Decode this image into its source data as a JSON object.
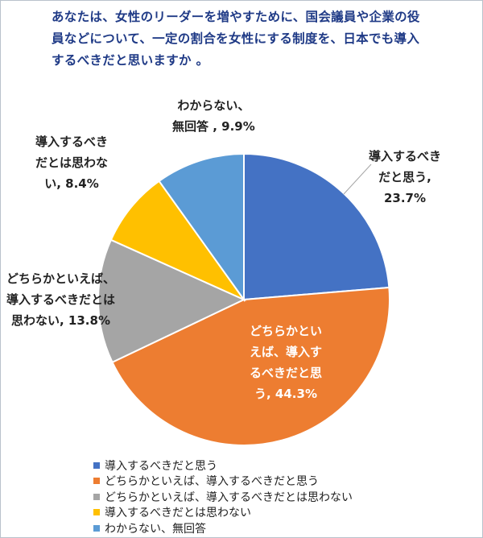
{
  "title_lines": [
    "あなたは、女性のリーダーを増やすために、国会議員や企業の役",
    "員などについて、一定の割合を女性にする制度を、日本でも導入",
    "するべきだと思いますか 。"
  ],
  "chart_data": {
    "type": "pie",
    "title": "あなたは、女性のリーダーを増やすために、国会議員や企業の役員などについて、一定の割合を女性にする制度を、日本でも導入するべきだと思いますか 。",
    "start_angle_deg": 0,
    "direction": "clockwise",
    "legend_position": "bottom",
    "slices": [
      {
        "name": "導入するべきだと思う",
        "value": 23.7,
        "color": "#4472C4",
        "label_lines": [
          "導入するべき",
          "だと思う,",
          "23.7%"
        ]
      },
      {
        "name": "どちらかといえば、導入するべきだと思う",
        "value": 44.3,
        "color": "#ED7D31",
        "label_lines": [
          "どちらかとい",
          "えば、導入す",
          "るべきだと思",
          "う, 44.3%"
        ]
      },
      {
        "name": "どちらかといえば、導入するべきだとは思わない",
        "value": 13.8,
        "color": "#A5A5A5",
        "label_lines": [
          "どちらかといえば、",
          "導入するべきだとは",
          "思わない, 13.8%"
        ]
      },
      {
        "name": "導入するべきだとは思わない",
        "value": 8.4,
        "color": "#FFC000",
        "label_lines": [
          "導入するべき",
          "だとは思わな",
          "い, 8.4%"
        ]
      },
      {
        "name": "わからない、無回答",
        "value": 9.9,
        "color": "#5B9BD5",
        "label_lines": [
          "わからない、",
          "無回答 , 9.9%"
        ]
      }
    ]
  }
}
